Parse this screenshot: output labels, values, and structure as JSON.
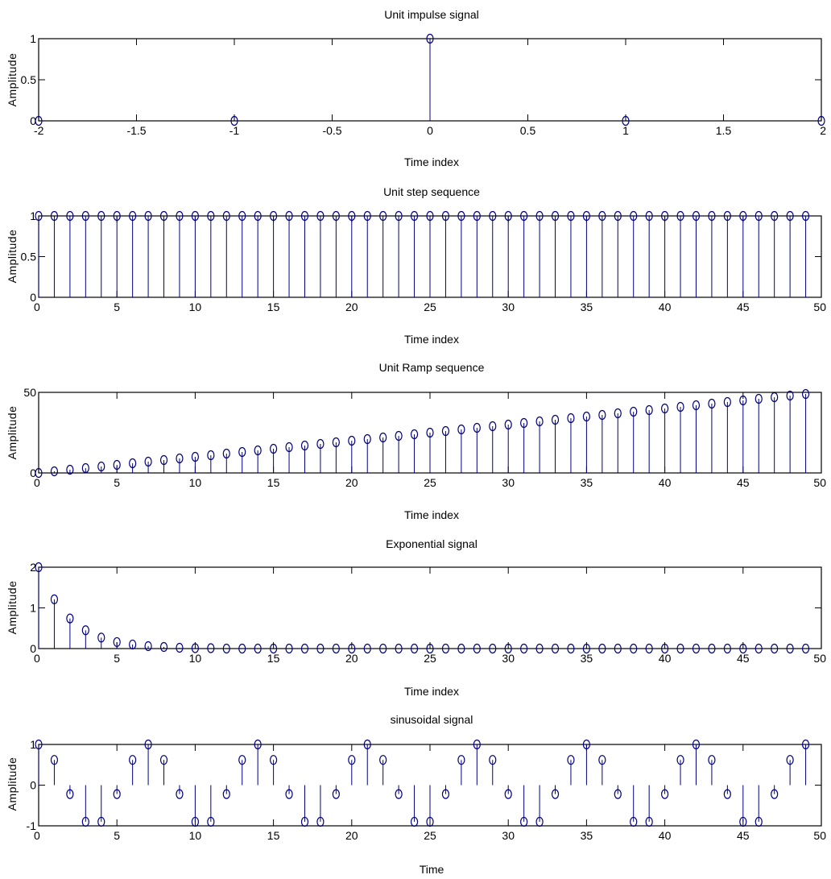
{
  "figure": {
    "background": "#ffffff",
    "stem_color": "#00007f",
    "axes_color": "#000000"
  },
  "chart_data": [
    {
      "type": "stem",
      "title": "Unit impulse signal",
      "xlabel": "Time index",
      "ylabel": "Amplitude",
      "xlim": [
        -2,
        2
      ],
      "ylim": [
        0,
        1
      ],
      "xticks": [
        -2,
        -1.5,
        -1,
        -0.5,
        0,
        0.5,
        1,
        1.5,
        2
      ],
      "xtick_labels": [
        "-2",
        "-1.5",
        "-1",
        "-0.5",
        "0",
        "0.5",
        "1",
        "1.5",
        "2"
      ],
      "yticks": [
        0,
        0.5,
        1
      ],
      "ytick_labels": [
        "0",
        "0.5",
        "1"
      ],
      "x": [
        -2,
        -1,
        0,
        1,
        2
      ],
      "y": [
        0,
        0,
        1,
        0,
        0
      ]
    },
    {
      "type": "stem",
      "title": "Unit step sequence",
      "xlabel": "Time index",
      "ylabel": "Amplitude",
      "xlim": [
        0,
        50
      ],
      "ylim": [
        0,
        1
      ],
      "xticks": [
        0,
        5,
        10,
        15,
        20,
        25,
        30,
        35,
        40,
        45,
        50
      ],
      "xtick_labels": [
        "0",
        "5",
        "10",
        "15",
        "20",
        "25",
        "30",
        "35",
        "40",
        "45",
        "50"
      ],
      "yticks": [
        0,
        0.5,
        1
      ],
      "ytick_labels": [
        "0",
        "0.5",
        "1"
      ],
      "x": [
        0,
        1,
        2,
        3,
        4,
        5,
        6,
        7,
        8,
        9,
        10,
        11,
        12,
        13,
        14,
        15,
        16,
        17,
        18,
        19,
        20,
        21,
        22,
        23,
        24,
        25,
        26,
        27,
        28,
        29,
        30,
        31,
        32,
        33,
        34,
        35,
        36,
        37,
        38,
        39,
        40,
        41,
        42,
        43,
        44,
        45,
        46,
        47,
        48,
        49
      ],
      "y": [
        1,
        1,
        1,
        1,
        1,
        1,
        1,
        1,
        1,
        1,
        1,
        1,
        1,
        1,
        1,
        1,
        1,
        1,
        1,
        1,
        1,
        1,
        1,
        1,
        1,
        1,
        1,
        1,
        1,
        1,
        1,
        1,
        1,
        1,
        1,
        1,
        1,
        1,
        1,
        1,
        1,
        1,
        1,
        1,
        1,
        1,
        1,
        1,
        1,
        1
      ]
    },
    {
      "type": "stem",
      "title": "Unit Ramp sequence",
      "xlabel": "Time index",
      "ylabel": "Amplitude",
      "xlim": [
        0,
        50
      ],
      "ylim": [
        0,
        50
      ],
      "xticks": [
        0,
        5,
        10,
        15,
        20,
        25,
        30,
        35,
        40,
        45,
        50
      ],
      "xtick_labels": [
        "0",
        "5",
        "10",
        "15",
        "20",
        "25",
        "30",
        "35",
        "40",
        "45",
        "50"
      ],
      "yticks": [
        0,
        50
      ],
      "ytick_labels": [
        "0",
        "50"
      ],
      "x": [
        0,
        1,
        2,
        3,
        4,
        5,
        6,
        7,
        8,
        9,
        10,
        11,
        12,
        13,
        14,
        15,
        16,
        17,
        18,
        19,
        20,
        21,
        22,
        23,
        24,
        25,
        26,
        27,
        28,
        29,
        30,
        31,
        32,
        33,
        34,
        35,
        36,
        37,
        38,
        39,
        40,
        41,
        42,
        43,
        44,
        45,
        46,
        47,
        48,
        49
      ],
      "y": [
        0,
        1,
        2,
        3,
        4,
        5,
        6,
        7,
        8,
        9,
        10,
        11,
        12,
        13,
        14,
        15,
        16,
        17,
        18,
        19,
        20,
        21,
        22,
        23,
        24,
        25,
        26,
        27,
        28,
        29,
        30,
        31,
        32,
        33,
        34,
        35,
        36,
        37,
        38,
        39,
        40,
        41,
        42,
        43,
        44,
        45,
        46,
        47,
        48,
        49
      ]
    },
    {
      "type": "stem",
      "title": "Exponential signal",
      "xlabel": "Time index",
      "ylabel": "Amplitude",
      "xlim": [
        0,
        50
      ],
      "ylim": [
        0,
        2
      ],
      "xticks": [
        0,
        5,
        10,
        15,
        20,
        25,
        30,
        35,
        40,
        45,
        50
      ],
      "xtick_labels": [
        "0",
        "5",
        "10",
        "15",
        "20",
        "25",
        "30",
        "35",
        "40",
        "45",
        "50"
      ],
      "yticks": [
        0,
        1,
        2
      ],
      "ytick_labels": [
        "0",
        "1",
        "2"
      ],
      "x": [
        0,
        1,
        2,
        3,
        4,
        5,
        6,
        7,
        8,
        9,
        10,
        11,
        12,
        13,
        14,
        15,
        16,
        17,
        18,
        19,
        20,
        21,
        22,
        23,
        24,
        25,
        26,
        27,
        28,
        29,
        30,
        31,
        32,
        33,
        34,
        35,
        36,
        37,
        38,
        39,
        40,
        41,
        42,
        43,
        44,
        45,
        46,
        47,
        48,
        49
      ],
      "y": [
        2.0,
        1.21,
        0.74,
        0.45,
        0.27,
        0.16,
        0.1,
        0.06,
        0.04,
        0.02,
        0.01,
        0.01,
        0,
        0,
        0,
        0,
        0,
        0,
        0,
        0,
        0,
        0,
        0,
        0,
        0,
        0,
        0,
        0,
        0,
        0,
        0,
        0,
        0,
        0,
        0,
        0,
        0,
        0,
        0,
        0,
        0,
        0,
        0,
        0,
        0,
        0,
        0,
        0,
        0,
        0
      ]
    },
    {
      "type": "stem",
      "title": "sinusoidal signal",
      "xlabel": "Time",
      "ylabel": "Amplitude",
      "xlim": [
        0,
        50
      ],
      "ylim": [
        -1,
        1
      ],
      "xticks": [
        0,
        5,
        10,
        15,
        20,
        25,
        30,
        35,
        40,
        45,
        50
      ],
      "xtick_labels": [
        "0",
        "5",
        "10",
        "15",
        "20",
        "25",
        "30",
        "35",
        "40",
        "45",
        "50"
      ],
      "yticks": [
        -1,
        0,
        1
      ],
      "ytick_labels": [
        "-1",
        "0",
        "1"
      ],
      "x": [
        0,
        1,
        2,
        3,
        4,
        5,
        6,
        7,
        8,
        9,
        10,
        11,
        12,
        13,
        14,
        15,
        16,
        17,
        18,
        19,
        20,
        21,
        22,
        23,
        24,
        25,
        26,
        27,
        28,
        29,
        30,
        31,
        32,
        33,
        34,
        35,
        36,
        37,
        38,
        39,
        40,
        41,
        42,
        43,
        44,
        45,
        46,
        47,
        48,
        49
      ],
      "y": [
        1,
        0.62,
        -0.22,
        -0.9,
        -0.9,
        -0.22,
        0.62,
        1,
        0.62,
        -0.22,
        -0.9,
        -0.9,
        -0.22,
        0.62,
        1,
        0.62,
        -0.22,
        -0.9,
        -0.9,
        -0.22,
        0.62,
        1,
        0.62,
        -0.22,
        -0.9,
        -0.9,
        -0.22,
        0.62,
        1,
        0.62,
        -0.22,
        -0.9,
        -0.9,
        -0.22,
        0.62,
        1,
        0.62,
        -0.22,
        -0.9,
        -0.9,
        -0.22,
        0.62,
        1,
        0.62,
        -0.22,
        -0.9,
        -0.9,
        -0.22,
        0.62,
        1
      ]
    }
  ]
}
